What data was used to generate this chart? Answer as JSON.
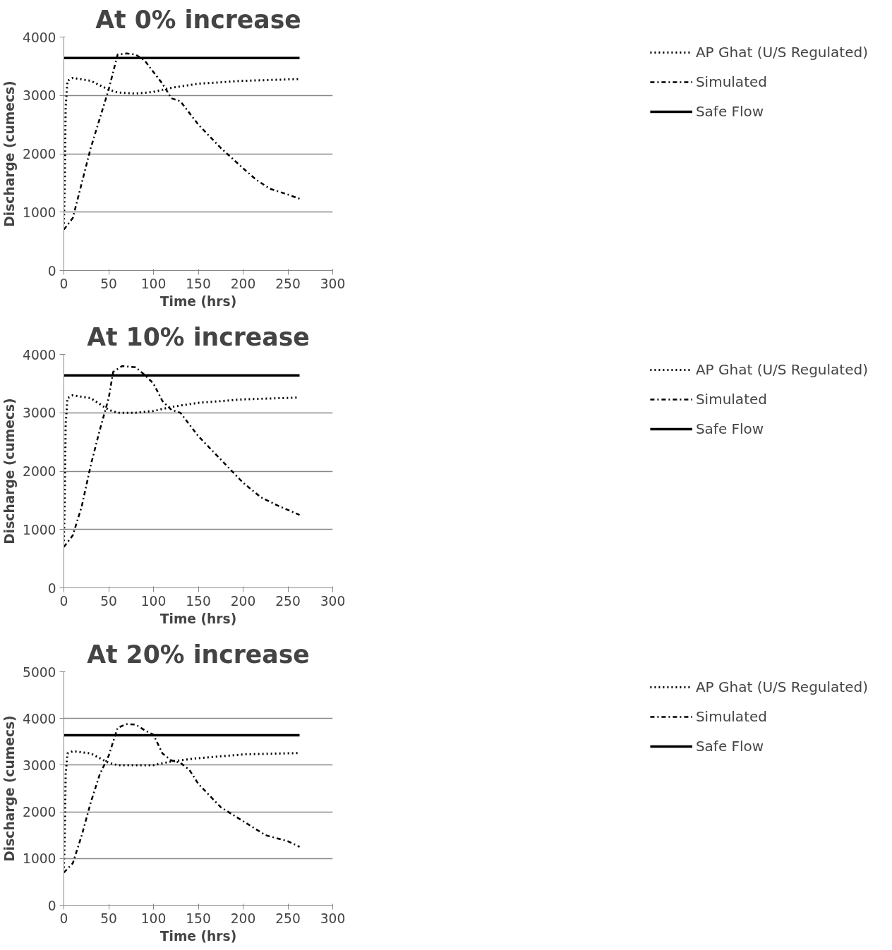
{
  "chart_data": [
    {
      "type": "line",
      "title": "At 0% increase",
      "xlabel": "Time (hrs)",
      "ylabel": "Discharge (cumecs)",
      "xlim": [
        0,
        300
      ],
      "xticks": [
        0,
        50,
        100,
        150,
        200,
        250,
        300
      ],
      "ylim": [
        0,
        4000
      ],
      "yticks": [
        0,
        1000,
        2000,
        3000,
        4000
      ],
      "grid": "y",
      "legend": "right",
      "series": [
        {
          "name": "AP Ghat (U/S Regulated)",
          "color": "#000000",
          "line_style": "dotted",
          "x": [
            0,
            1,
            2,
            4,
            10,
            30,
            50,
            60,
            80,
            100,
            120,
            150,
            200,
            263
          ],
          "values": [
            800,
            1500,
            2800,
            3250,
            3300,
            3250,
            3100,
            3050,
            3030,
            3060,
            3130,
            3200,
            3250,
            3280
          ]
        },
        {
          "name": "Simulated",
          "color": "#000000",
          "line_style": "dashdot",
          "x": [
            0,
            10,
            20,
            30,
            40,
            50,
            60,
            70,
            80,
            90,
            100,
            110,
            120,
            130,
            150,
            175,
            200,
            215,
            230,
            250,
            263
          ],
          "values": [
            700,
            900,
            1500,
            2100,
            2600,
            3100,
            3700,
            3720,
            3700,
            3600,
            3400,
            3200,
            2950,
            2900,
            2500,
            2100,
            1750,
            1550,
            1400,
            1300,
            1230
          ]
        },
        {
          "name": "Safe Flow",
          "color": "#000000",
          "line_style": "solid",
          "x": [
            0,
            263
          ],
          "values": [
            3640,
            3640
          ]
        }
      ]
    },
    {
      "type": "line",
      "title": "At 10% increase",
      "xlabel": "Time (hrs)",
      "ylabel": "Discharge (cumecs)",
      "xlim": [
        0,
        300
      ],
      "xticks": [
        0,
        50,
        100,
        150,
        200,
        250,
        300
      ],
      "ylim": [
        0,
        4000
      ],
      "yticks": [
        0,
        1000,
        2000,
        3000,
        4000
      ],
      "grid": "y",
      "legend": "right",
      "series": [
        {
          "name": "AP Ghat (U/S Regulated)",
          "color": "#000000",
          "line_style": "dotted",
          "x": [
            0,
            1,
            2,
            4,
            10,
            30,
            50,
            60,
            80,
            100,
            120,
            150,
            200,
            260
          ],
          "values": [
            800,
            1500,
            2800,
            3250,
            3300,
            3250,
            3050,
            3000,
            3000,
            3030,
            3100,
            3170,
            3230,
            3260
          ]
        },
        {
          "name": "Simulated",
          "color": "#000000",
          "line_style": "dashdot",
          "x": [
            0,
            10,
            20,
            30,
            40,
            50,
            55,
            65,
            80,
            90,
            100,
            110,
            120,
            130,
            150,
            175,
            200,
            220,
            240,
            263
          ],
          "values": [
            700,
            900,
            1400,
            2100,
            2700,
            3250,
            3700,
            3800,
            3780,
            3650,
            3500,
            3200,
            3050,
            3000,
            2600,
            2200,
            1800,
            1550,
            1400,
            1250
          ]
        },
        {
          "name": "Safe Flow",
          "color": "#000000",
          "line_style": "solid",
          "x": [
            0,
            263
          ],
          "values": [
            3640,
            3640
          ]
        }
      ]
    },
    {
      "type": "line",
      "title": "At 20% increase",
      "xlabel": "Time (hrs)",
      "ylabel": "Discharge (cumecs)",
      "xlim": [
        0,
        300
      ],
      "xticks": [
        0,
        50,
        100,
        150,
        200,
        250,
        300
      ],
      "ylim": [
        0,
        5000
      ],
      "yticks": [
        0,
        1000,
        2000,
        3000,
        4000,
        5000
      ],
      "grid": "y",
      "legend": "right",
      "series": [
        {
          "name": "AP Ghat (U/S Regulated)",
          "color": "#000000",
          "line_style": "dotted",
          "x": [
            0,
            1,
            2,
            4,
            10,
            30,
            50,
            60,
            100,
            120,
            150,
            200,
            263
          ],
          "values": [
            800,
            1500,
            2800,
            3250,
            3300,
            3250,
            3050,
            3000,
            3000,
            3080,
            3150,
            3230,
            3260
          ]
        },
        {
          "name": "Simulated",
          "color": "#000000",
          "line_style": "dashdot",
          "x": [
            0,
            10,
            20,
            30,
            40,
            50,
            60,
            70,
            80,
            90,
            100,
            110,
            120,
            130,
            140,
            150,
            175,
            200,
            225,
            250,
            263
          ],
          "values": [
            700,
            900,
            1500,
            2200,
            2800,
            3200,
            3800,
            3880,
            3870,
            3750,
            3650,
            3250,
            3100,
            3050,
            2900,
            2600,
            2100,
            1800,
            1500,
            1370,
            1250
          ]
        },
        {
          "name": "Safe Flow",
          "color": "#000000",
          "line_style": "solid",
          "x": [
            0,
            263
          ],
          "values": [
            3640,
            3640
          ]
        }
      ]
    }
  ]
}
